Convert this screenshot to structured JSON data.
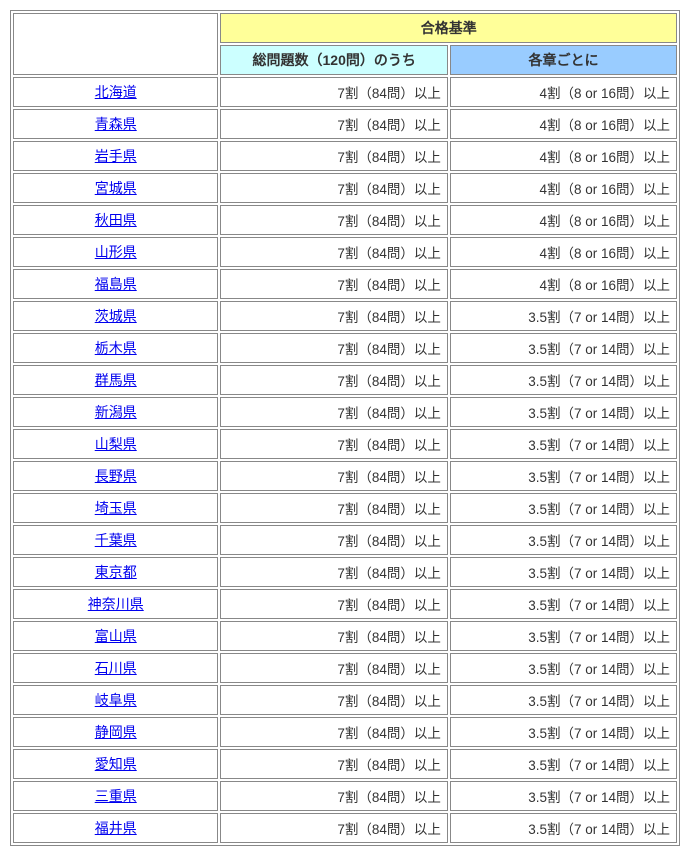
{
  "colors": {
    "header_main_bg": "#ffff99",
    "header_sub1_bg": "#ccffff",
    "header_sub2_bg": "#99ccff",
    "link_color": "#0000ee",
    "border_color": "#888888",
    "text_color": "#333333"
  },
  "table": {
    "header_main": "合格基準",
    "header_sub1": "総問題数（120問）のうち",
    "header_sub2": "各章ごとに",
    "rows": [
      {
        "pref": "北海道",
        "total": "7割（84問）以上",
        "chapter": "4割（8 or 16問）以上"
      },
      {
        "pref": "青森県",
        "total": "7割（84問）以上",
        "chapter": "4割（8 or 16問）以上"
      },
      {
        "pref": "岩手県",
        "total": "7割（84問）以上",
        "chapter": "4割（8 or 16問）以上"
      },
      {
        "pref": "宮城県",
        "total": "7割（84問）以上",
        "chapter": "4割（8 or 16問）以上"
      },
      {
        "pref": "秋田県",
        "total": "7割（84問）以上",
        "chapter": "4割（8 or 16問）以上"
      },
      {
        "pref": "山形県",
        "total": "7割（84問）以上",
        "chapter": "4割（8 or 16問）以上"
      },
      {
        "pref": "福島県",
        "total": "7割（84問）以上",
        "chapter": "4割（8 or 16問）以上"
      },
      {
        "pref": "茨城県",
        "total": "7割（84問）以上",
        "chapter": "3.5割（7 or 14問）以上"
      },
      {
        "pref": "栃木県",
        "total": "7割（84問）以上",
        "chapter": "3.5割（7 or 14問）以上"
      },
      {
        "pref": "群馬県",
        "total": "7割（84問）以上",
        "chapter": "3.5割（7 or 14問）以上"
      },
      {
        "pref": "新潟県",
        "total": "7割（84問）以上",
        "chapter": "3.5割（7 or 14問）以上"
      },
      {
        "pref": "山梨県",
        "total": "7割（84問）以上",
        "chapter": "3.5割（7 or 14問）以上"
      },
      {
        "pref": "長野県",
        "total": "7割（84問）以上",
        "chapter": "3.5割（7 or 14問）以上"
      },
      {
        "pref": "埼玉県",
        "total": "7割（84問）以上",
        "chapter": "3.5割（7 or 14問）以上"
      },
      {
        "pref": "千葉県",
        "total": "7割（84問）以上",
        "chapter": "3.5割（7 or 14問）以上"
      },
      {
        "pref": "東京都",
        "total": "7割（84問）以上",
        "chapter": "3.5割（7 or 14問）以上"
      },
      {
        "pref": "神奈川県",
        "total": "7割（84問）以上",
        "chapter": "3.5割（7 or 14問）以上"
      },
      {
        "pref": "富山県",
        "total": "7割（84問）以上",
        "chapter": "3.5割（7 or 14問）以上"
      },
      {
        "pref": "石川県",
        "total": "7割（84問）以上",
        "chapter": "3.5割（7 or 14問）以上"
      },
      {
        "pref": "岐阜県",
        "total": "7割（84問）以上",
        "chapter": "3.5割（7 or 14問）以上"
      },
      {
        "pref": "静岡県",
        "total": "7割（84問）以上",
        "chapter": "3.5割（7 or 14問）以上"
      },
      {
        "pref": "愛知県",
        "total": "7割（84問）以上",
        "chapter": "3.5割（7 or 14問）以上"
      },
      {
        "pref": "三重県",
        "total": "7割（84問）以上",
        "chapter": "3.5割（7 or 14問）以上"
      },
      {
        "pref": "福井県",
        "total": "7割（84問）以上",
        "chapter": "3.5割（7 or 14問）以上"
      }
    ]
  }
}
